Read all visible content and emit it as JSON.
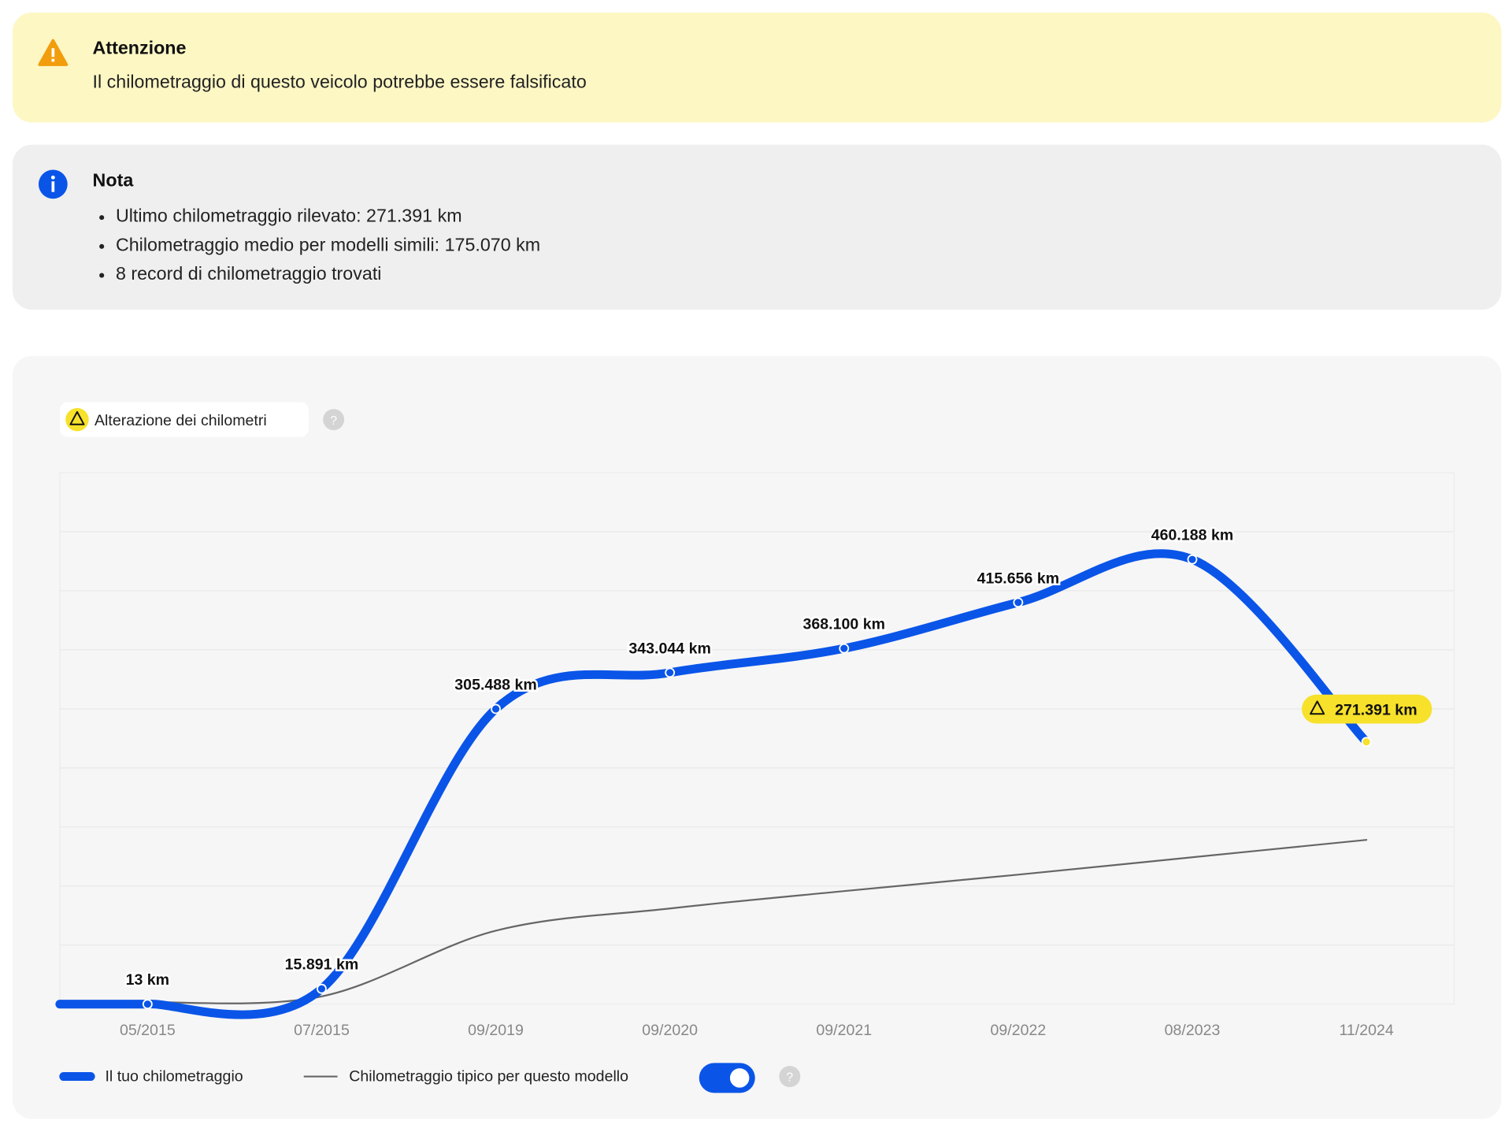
{
  "warning": {
    "title": "Attenzione",
    "text": "Il chilometraggio di questo veicolo potrebbe essere falsificato"
  },
  "note": {
    "title": "Nota",
    "items": [
      "Ultimo chilometraggio rilevato: 271.391 km",
      "Chilometraggio medio per modelli simili: 175.070 km",
      "8 record di chilometraggio trovati"
    ]
  },
  "chart_data": {
    "type": "line",
    "badge": "Alterazione dei chilometri",
    "categories": [
      "05/2015",
      "07/2015",
      "09/2019",
      "09/2020",
      "09/2021",
      "09/2022",
      "08/2023",
      "11/2024"
    ],
    "series": [
      {
        "name": "Il tuo chilometraggio",
        "color": "#0a55e8",
        "values": [
          13,
          15891,
          305488,
          343044,
          368100,
          415656,
          460188,
          271391
        ],
        "value_labels": [
          "13 km",
          "15.891 km",
          "305.488 km",
          "343.044 km",
          "368.100 km",
          "415.656 km",
          "460.188 km",
          "271.391 km"
        ]
      },
      {
        "name": "Chilometraggio tipico per questo modello",
        "color": "#666666",
        "values": [
          2000,
          8000,
          76000,
          99000,
          117000,
          134000,
          152000,
          170000
        ]
      }
    ],
    "ylim": [
      0,
      550000
    ],
    "grid": true
  }
}
